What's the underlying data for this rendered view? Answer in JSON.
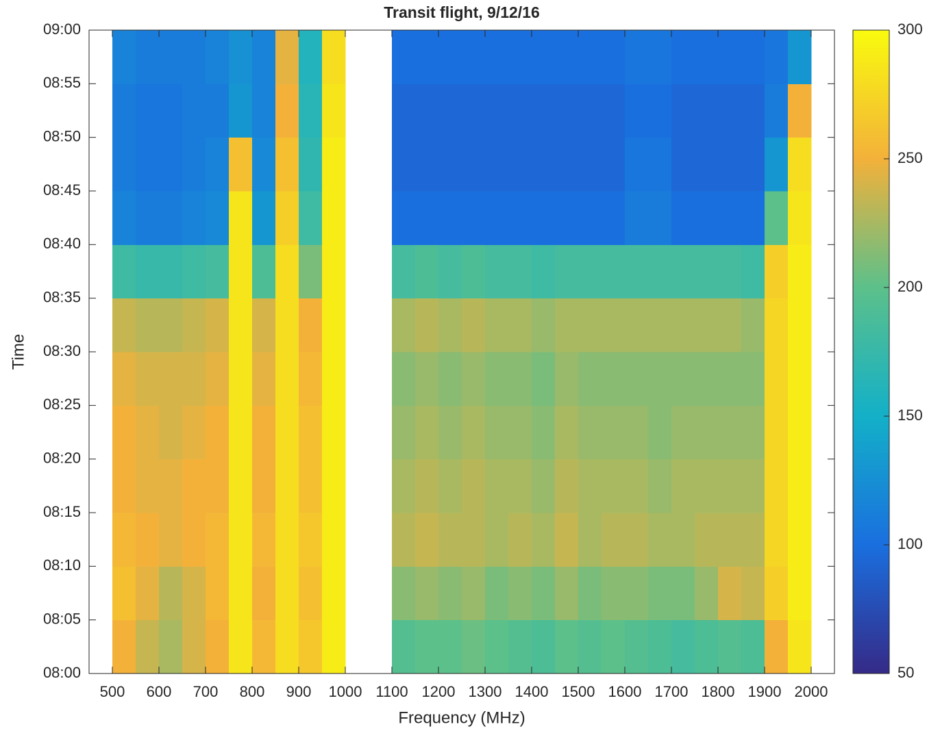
{
  "chart_data": {
    "type": "heatmap",
    "title": "Transit flight, 9/12/16",
    "xlabel": "Frequency (MHz)",
    "ylabel": "Time",
    "xlim": [
      450,
      2050
    ],
    "ylim": [
      480,
      540
    ],
    "zlim": [
      50,
      300
    ],
    "xticks": [
      500,
      600,
      700,
      800,
      900,
      1000,
      1100,
      1200,
      1300,
      1400,
      1500,
      1600,
      1700,
      1800,
      1900,
      2000
    ],
    "yticks": [
      {
        "value": 480,
        "label": "08:00"
      },
      {
        "value": 485,
        "label": "08:05"
      },
      {
        "value": 490,
        "label": "08:10"
      },
      {
        "value": 495,
        "label": "08:15"
      },
      {
        "value": 500,
        "label": "08:20"
      },
      {
        "value": 505,
        "label": "08:25"
      },
      {
        "value": 510,
        "label": "08:30"
      },
      {
        "value": 515,
        "label": "08:35"
      },
      {
        "value": 520,
        "label": "08:40"
      },
      {
        "value": 525,
        "label": "08:45"
      },
      {
        "value": 530,
        "label": "08:50"
      },
      {
        "value": 535,
        "label": "08:55"
      },
      {
        "value": 540,
        "label": "09:00"
      }
    ],
    "zticks": [
      50,
      100,
      150,
      200,
      250,
      300
    ],
    "colormap": [
      "#352a87",
      "#1a6fdf",
      "#13b0c8",
      "#5cc08a",
      "#f3b13a",
      "#f9fb0e"
    ],
    "xbins": [
      500,
      550,
      600,
      650,
      700,
      750,
      800,
      850,
      900,
      950,
      1000,
      1050,
      1100,
      1150,
      1200,
      1250,
      1300,
      1350,
      1400,
      1450,
      1500,
      1550,
      1600,
      1650,
      1700,
      1750,
      1800,
      1850,
      1900,
      1950,
      2000
    ],
    "ybins": [
      480,
      485,
      490,
      495,
      500,
      505,
      510,
      515,
      520,
      525,
      530,
      535,
      540
    ],
    "z": [
      [
        250,
        235,
        225,
        240,
        250,
        285,
        255,
        280,
        265,
        290,
        null,
        null,
        195,
        200,
        200,
        205,
        200,
        195,
        190,
        200,
        195,
        200,
        195,
        190,
        185,
        190,
        195,
        190,
        250,
        285
      ],
      [
        260,
        245,
        230,
        240,
        255,
        285,
        250,
        280,
        260,
        290,
        null,
        null,
        215,
        220,
        215,
        220,
        210,
        215,
        210,
        220,
        210,
        215,
        215,
        210,
        210,
        220,
        240,
        235,
        270,
        290
      ],
      [
        255,
        250,
        245,
        250,
        255,
        285,
        255,
        280,
        265,
        290,
        null,
        null,
        230,
        235,
        230,
        230,
        225,
        230,
        225,
        235,
        225,
        230,
        230,
        225,
        225,
        230,
        230,
        230,
        275,
        290
      ],
      [
        250,
        245,
        245,
        250,
        250,
        285,
        250,
        280,
        260,
        290,
        null,
        null,
        225,
        230,
        225,
        230,
        225,
        225,
        220,
        230,
        225,
        225,
        225,
        220,
        225,
        225,
        225,
        225,
        275,
        290
      ],
      [
        250,
        245,
        240,
        245,
        250,
        285,
        250,
        280,
        260,
        290,
        null,
        null,
        220,
        225,
        220,
        225,
        220,
        220,
        215,
        225,
        220,
        220,
        220,
        215,
        220,
        220,
        220,
        220,
        275,
        290
      ],
      [
        245,
        240,
        240,
        240,
        245,
        285,
        245,
        280,
        255,
        290,
        null,
        null,
        215,
        220,
        215,
        220,
        215,
        215,
        210,
        220,
        215,
        215,
        215,
        215,
        215,
        215,
        215,
        215,
        275,
        290
      ],
      [
        235,
        230,
        230,
        235,
        240,
        285,
        240,
        280,
        250,
        290,
        null,
        null,
        225,
        230,
        225,
        230,
        225,
        225,
        220,
        225,
        225,
        225,
        225,
        225,
        225,
        225,
        225,
        220,
        275,
        290
      ],
      [
        180,
        175,
        175,
        180,
        185,
        285,
        190,
        280,
        210,
        290,
        null,
        null,
        185,
        190,
        185,
        190,
        185,
        185,
        180,
        185,
        185,
        185,
        185,
        185,
        185,
        185,
        185,
        180,
        270,
        290
      ],
      [
        115,
        110,
        110,
        115,
        120,
        285,
        130,
        270,
        180,
        290,
        null,
        null,
        100,
        100,
        100,
        100,
        100,
        100,
        100,
        100,
        100,
        100,
        110,
        110,
        100,
        100,
        100,
        100,
        200,
        285
      ],
      [
        110,
        105,
        105,
        110,
        115,
        260,
        120,
        260,
        170,
        290,
        null,
        null,
        95,
        95,
        95,
        95,
        95,
        95,
        95,
        95,
        95,
        95,
        105,
        105,
        95,
        95,
        95,
        95,
        130,
        280
      ],
      [
        110,
        105,
        105,
        110,
        110,
        130,
        115,
        250,
        165,
        285,
        null,
        null,
        95,
        95,
        95,
        95,
        95,
        95,
        95,
        95,
        95,
        95,
        100,
        100,
        95,
        95,
        95,
        95,
        110,
        250
      ],
      [
        115,
        110,
        110,
        110,
        115,
        125,
        115,
        245,
        160,
        280,
        null,
        null,
        100,
        100,
        100,
        100,
        100,
        100,
        100,
        100,
        100,
        100,
        105,
        105,
        100,
        100,
        100,
        100,
        105,
        130
      ]
    ]
  }
}
